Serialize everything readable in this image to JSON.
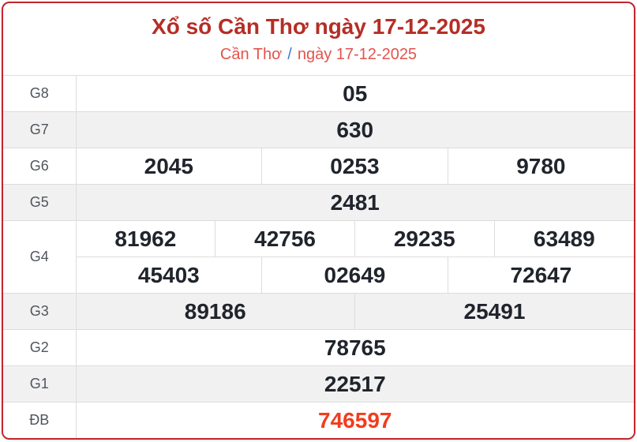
{
  "header": {
    "title": "Xổ số Cần Thơ ngày 17-12-2025",
    "breadcrumb": {
      "province": "Cần Thơ",
      "separator": "/",
      "date": "ngày 17-12-2025"
    }
  },
  "results": {
    "rows": [
      {
        "label": "G8",
        "cells": [
          "05"
        ]
      },
      {
        "label": "G7",
        "cells": [
          "630"
        ]
      },
      {
        "label": "G6",
        "cells": [
          "2045",
          "0253",
          "9780"
        ]
      },
      {
        "label": "G5",
        "cells": [
          "2481"
        ]
      },
      {
        "label": "G4",
        "cells": [
          "81962",
          "42756",
          "29235",
          "63489",
          "45403",
          "02649",
          "72647"
        ]
      },
      {
        "label": "G3",
        "cells": [
          "89186",
          "25491"
        ]
      },
      {
        "label": "G2",
        "cells": [
          "78765"
        ]
      },
      {
        "label": "G1",
        "cells": [
          "22517"
        ]
      },
      {
        "label": "ĐB",
        "cells": [
          "746597"
        ]
      }
    ]
  },
  "colors": {
    "border_red": "#c4252c",
    "title_red": "#b52e26",
    "subtitle_red": "#e2544c",
    "separator_blue": "#3b7dc8",
    "special_red": "#f23c1f",
    "value_dark": "#20242c",
    "label_gray": "#50555c",
    "row_gray": "#f1f1f1",
    "grid_line": "#dddddd"
  }
}
